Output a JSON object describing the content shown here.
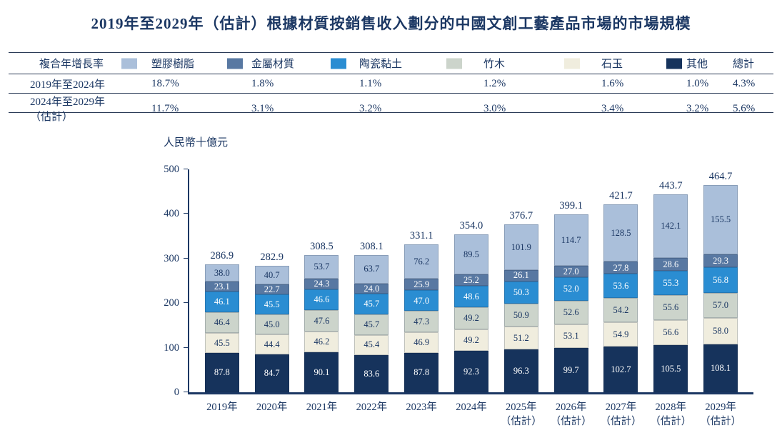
{
  "title": "2019年至2029年（估計）根據材質按銷售收入劃分的中國文創工藝產品市場的市場規模",
  "table": {
    "cagr_header": "複合年增長率",
    "total_header": "總計",
    "legend": [
      {
        "label": "塑膠樹脂",
        "color": "#aabfda"
      },
      {
        "label": "金屬材質",
        "color": "#5878a2"
      },
      {
        "label": "陶瓷黏土",
        "color": "#2a8dd2"
      },
      {
        "label": "竹木",
        "color": "#ccd4cb"
      },
      {
        "label": "石玉",
        "color": "#f0edde"
      },
      {
        "label": "其他",
        "color": "#16335c"
      }
    ],
    "rows": [
      {
        "period": "2019年至2024年",
        "values": [
          "18.7%",
          "1.8%",
          "1.1%",
          "1.2%",
          "1.6%",
          "1.0%",
          "4.3%"
        ]
      },
      {
        "period": "2024年至2029年（估計）",
        "values": [
          "11.7%",
          "3.1%",
          "3.2%",
          "3.0%",
          "3.4%",
          "3.2%",
          "5.6%"
        ]
      }
    ]
  },
  "chart_data": {
    "type": "bar",
    "stacked": true,
    "title": "2019年至2029年（估計）根據材質按銷售收入劃分的中國文創工藝產品市場的市場規模",
    "unit_label": "人民幣十億元",
    "grid": false,
    "legend_position": "top",
    "y_axis": {
      "min": 0,
      "max": 500,
      "ticks": [
        0,
        100,
        200,
        300,
        400,
        500
      ]
    },
    "categories": [
      "2019年",
      "2020年",
      "2021年",
      "2022年",
      "2023年",
      "2024年",
      "2025年（估計）",
      "2026年（估計）",
      "2027年（估計）",
      "2028年（估計）",
      "2029年（估計）"
    ],
    "category_lines": [
      [
        "2019年"
      ],
      [
        "2020年"
      ],
      [
        "2021年"
      ],
      [
        "2022年"
      ],
      [
        "2023年"
      ],
      [
        "2024年"
      ],
      [
        "2025年",
        "（估計）"
      ],
      [
        "2026年",
        "（估計）"
      ],
      [
        "2027年",
        "（估計）"
      ],
      [
        "2028年",
        "（估計）"
      ],
      [
        "2029年",
        "（估計）"
      ]
    ],
    "totals": [
      286.9,
      282.9,
      308.5,
      308.1,
      331.1,
      354.0,
      376.7,
      399.1,
      421.7,
      443.7,
      464.7
    ],
    "series_order": "bottom_to_top",
    "series": [
      {
        "name": "其他",
        "color": "#16335c",
        "label_color": "#ffffff",
        "values": [
          87.8,
          84.7,
          90.1,
          83.6,
          87.8,
          92.3,
          96.3,
          99.7,
          102.7,
          105.5,
          108.1
        ]
      },
      {
        "name": "石玉",
        "color": "#f0edde",
        "label_color": "#1b3763",
        "values": [
          45.5,
          44.4,
          46.2,
          45.4,
          46.9,
          49.2,
          51.2,
          53.1,
          54.9,
          56.6,
          58.0
        ]
      },
      {
        "name": "竹木",
        "color": "#ccd4cb",
        "label_color": "#1b3763",
        "values": [
          46.4,
          45.0,
          47.6,
          45.7,
          47.3,
          49.2,
          50.9,
          52.6,
          54.2,
          55.6,
          57.0
        ]
      },
      {
        "name": "陶瓷黏土",
        "color": "#2a8dd2",
        "label_color": "#ffffff",
        "values": [
          46.1,
          45.5,
          46.6,
          45.7,
          47.0,
          48.6,
          50.3,
          52.0,
          53.6,
          55.3,
          56.8
        ]
      },
      {
        "name": "金屬材質",
        "color": "#5878a2",
        "label_color": "#ffffff",
        "values": [
          23.1,
          22.7,
          24.3,
          24.0,
          25.9,
          25.2,
          26.1,
          27.0,
          27.8,
          28.6,
          29.3
        ]
      },
      {
        "name": "塑膠樹脂",
        "color": "#aabfda",
        "label_color": "#1b3763",
        "values": [
          38.0,
          40.7,
          53.7,
          63.7,
          76.2,
          89.5,
          101.9,
          114.7,
          128.5,
          142.1,
          155.5
        ]
      }
    ]
  }
}
